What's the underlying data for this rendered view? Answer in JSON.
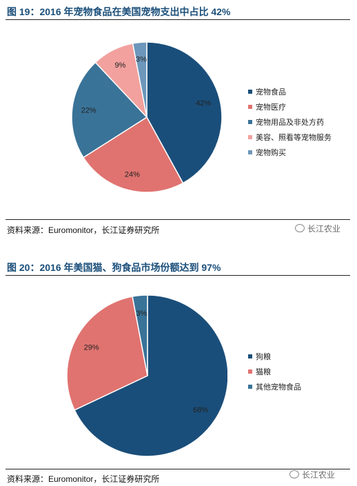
{
  "watermark_text": "长江农业",
  "chart_data": [
    {
      "type": "pie",
      "title": "图 19：2016 年宠物食品在美国宠物支出中占比 42%",
      "source": "资料来源：Euromonitor，长江证券研究所",
      "legend_position": "right",
      "series": [
        {
          "name": "宠物食品",
          "value": 42,
          "label": "42%",
          "color": "#1a4e7a"
        },
        {
          "name": "宠物医疗",
          "value": 24,
          "label": "24%",
          "color": "#e07370"
        },
        {
          "name": "宠物用品及非处方药",
          "value": 22,
          "label": "22%",
          "color": "#3a7398"
        },
        {
          "name": "美容、照看等宠物服务",
          "value": 9,
          "label": "9%",
          "color": "#f2a19e"
        },
        {
          "name": "宠物购买",
          "value": 3,
          "label": "3%",
          "color": "#6d97bb"
        }
      ]
    },
    {
      "type": "pie",
      "title": "图 20：2016 年美国猫、狗食品市场份额达到 97%",
      "source": "资料来源：Euromonitor，长江证券研究所",
      "legend_position": "right",
      "series": [
        {
          "name": "狗粮",
          "value": 68,
          "label": "68%",
          "color": "#1a4e7a"
        },
        {
          "name": "猫粮",
          "value": 29,
          "label": "29%",
          "color": "#e07370"
        },
        {
          "name": "其他宠物食品",
          "value": 3,
          "label": "3%",
          "color": "#3a7398"
        }
      ]
    }
  ]
}
